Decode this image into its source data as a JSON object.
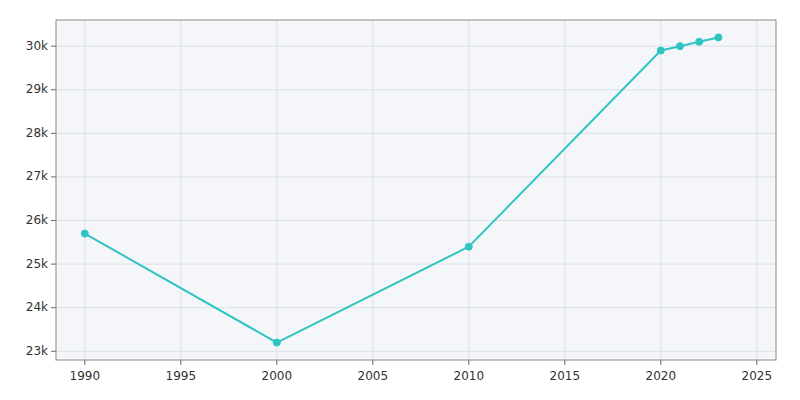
{
  "chart_data": {
    "type": "line",
    "x": [
      1990,
      2000,
      2010,
      2020,
      2021,
      2022,
      2023
    ],
    "values": [
      25700,
      23200,
      25400,
      29900,
      30000,
      30100,
      30200
    ],
    "color": "#2ec4c4",
    "marker": "circle",
    "xlim": [
      1988.5,
      2026
    ],
    "ylim": [
      22800,
      30600
    ],
    "xticks": [
      1990,
      1995,
      2000,
      2005,
      2010,
      2015,
      2020,
      2025
    ],
    "yticks": [
      {
        "value": 23000,
        "label": "23k"
      },
      {
        "value": 24000,
        "label": "24k"
      },
      {
        "value": 25000,
        "label": "25k"
      },
      {
        "value": 26000,
        "label": "26k"
      },
      {
        "value": 27000,
        "label": "27k"
      },
      {
        "value": 28000,
        "label": "28k"
      },
      {
        "value": 29000,
        "label": "29k"
      },
      {
        "value": 30000,
        "label": "30k"
      }
    ],
    "grid": true
  }
}
